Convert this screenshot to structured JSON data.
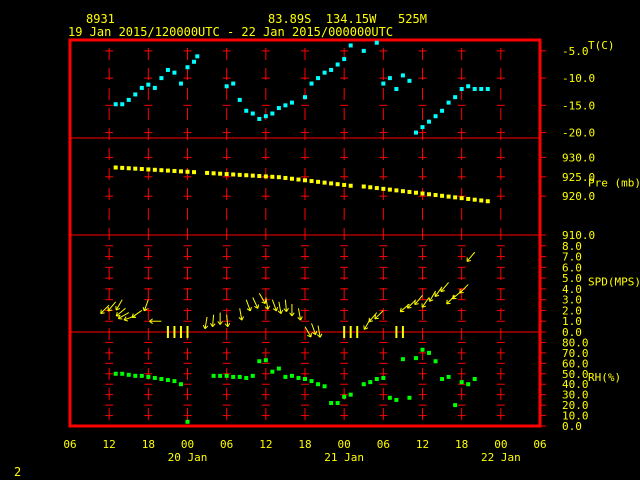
{
  "header": {
    "station_id": "8931",
    "location": "83.89S  134.15W   525M",
    "time_range": "19 Jan 2015/120000UTC - 22 Jan 2015/000000UTC"
  },
  "footer": {
    "page_number": "2"
  },
  "colors": {
    "frame": "#ff0000",
    "grid": "#ff0000",
    "temperature": "#00ffff",
    "pressure": "#ffff00",
    "wind": "#ffff00",
    "humidity": "#00ff00",
    "header_text": "#ffff00",
    "axis_text": "#ffff00"
  },
  "x_axis": {
    "tick_labels": [
      "06",
      "12",
      "18",
      "00",
      "06",
      "12",
      "18",
      "00",
      "06",
      "12",
      "18",
      "00",
      "06"
    ],
    "tick_hours": [
      6,
      12,
      18,
      24,
      30,
      36,
      42,
      48,
      54,
      60,
      66,
      72,
      78
    ],
    "day_labels": [
      {
        "label": "20 Jan",
        "hour": 24
      },
      {
        "label": "21 Jan",
        "hour": 48
      },
      {
        "label": "22 Jan",
        "hour": 72
      }
    ]
  },
  "chart_data": [
    {
      "type": "scatter",
      "panel": "temperature",
      "ylabel": "T(C)",
      "ylim": [
        -21,
        -3
      ],
      "ticks": [
        "-5.0",
        "-10.0",
        "-15.0",
        "-20.0"
      ],
      "tick_values": [
        -5,
        -10,
        -15,
        -20
      ],
      "x_unit": "hours since 19 Jan 2015 00 UTC",
      "points": [
        [
          13,
          -14.8
        ],
        [
          14,
          -14.8
        ],
        [
          15,
          -14
        ],
        [
          16,
          -13
        ],
        [
          17,
          -11.8
        ],
        [
          18,
          -11.2
        ],
        [
          19,
          -11.8
        ],
        [
          20,
          -10
        ],
        [
          21,
          -8.5
        ],
        [
          22,
          -9
        ],
        [
          23,
          -11
        ],
        [
          24,
          -8
        ],
        [
          25,
          -7
        ],
        [
          25.5,
          -6
        ],
        [
          30,
          -11.5
        ],
        [
          31,
          -11
        ],
        [
          32,
          -14
        ],
        [
          33,
          -16
        ],
        [
          34,
          -16.5
        ],
        [
          35,
          -17.5
        ],
        [
          36,
          -17
        ],
        [
          37,
          -16.5
        ],
        [
          38,
          -15.5
        ],
        [
          39,
          -15
        ],
        [
          40,
          -14.5
        ],
        [
          42,
          -13.5
        ],
        [
          43,
          -11
        ],
        [
          44,
          -10
        ],
        [
          45,
          -9
        ],
        [
          46,
          -8.5
        ],
        [
          47,
          -7.5
        ],
        [
          48,
          -6.5
        ],
        [
          49,
          -4
        ],
        [
          51,
          -5
        ],
        [
          53,
          -3.5
        ],
        [
          54,
          -11
        ],
        [
          55,
          -10
        ],
        [
          56,
          -12
        ],
        [
          57,
          -9.5
        ],
        [
          58,
          -10.5
        ],
        [
          59,
          -20
        ],
        [
          60,
          -19
        ],
        [
          61,
          -18
        ],
        [
          62,
          -17
        ],
        [
          63,
          -16
        ],
        [
          64,
          -14.5
        ],
        [
          65,
          -13.5
        ],
        [
          66,
          -12
        ],
        [
          67,
          -11.5
        ],
        [
          68,
          -12
        ],
        [
          69,
          -12
        ],
        [
          70,
          -12
        ]
      ]
    },
    {
      "type": "scatter",
      "panel": "pressure",
      "ylabel": "Pre (mb)",
      "ylim": [
        910,
        935
      ],
      "ticks": [
        "930.0",
        "925.0",
        "920.0",
        "910.0"
      ],
      "tick_values": [
        930,
        925,
        920,
        910
      ],
      "x_unit": "hours since 19 Jan 2015 00 UTC",
      "points": [
        [
          13,
          927.4
        ],
        [
          14,
          927.3
        ],
        [
          15,
          927.2
        ],
        [
          16,
          927.1
        ],
        [
          17,
          927
        ],
        [
          18,
          926.9
        ],
        [
          19,
          926.8
        ],
        [
          20,
          926.7
        ],
        [
          21,
          926.6
        ],
        [
          22,
          926.5
        ],
        [
          23,
          926.4
        ],
        [
          24,
          926.3
        ],
        [
          25,
          926.2
        ],
        [
          27,
          926
        ],
        [
          28,
          925.9
        ],
        [
          29,
          925.8
        ],
        [
          30,
          925.7
        ],
        [
          31,
          925.6
        ],
        [
          32,
          925.5
        ],
        [
          33,
          925.4
        ],
        [
          34,
          925.3
        ],
        [
          35,
          925.2
        ],
        [
          36,
          925.1
        ],
        [
          37,
          925
        ],
        [
          38,
          924.9
        ],
        [
          39,
          924.7
        ],
        [
          40,
          924.5
        ],
        [
          41,
          924.3
        ],
        [
          42,
          924.1
        ],
        [
          43,
          923.9
        ],
        [
          44,
          923.7
        ],
        [
          45,
          923.5
        ],
        [
          46,
          923.3
        ],
        [
          47,
          923.1
        ],
        [
          48,
          922.9
        ],
        [
          49,
          922.7
        ],
        [
          51,
          922.5
        ],
        [
          52,
          922.3
        ],
        [
          53,
          922.1
        ],
        [
          54,
          921.9
        ],
        [
          55,
          921.7
        ],
        [
          56,
          921.5
        ],
        [
          57,
          921.3
        ],
        [
          58,
          921.1
        ],
        [
          59,
          920.9
        ],
        [
          60,
          920.7
        ],
        [
          61,
          920.5
        ],
        [
          62,
          920.3
        ],
        [
          63,
          920.1
        ],
        [
          64,
          919.9
        ],
        [
          65,
          919.7
        ],
        [
          66,
          919.5
        ],
        [
          67,
          919.3
        ],
        [
          68,
          919.1
        ],
        [
          69,
          918.9
        ],
        [
          70,
          918.7
        ]
      ]
    },
    {
      "type": "scatter",
      "panel": "wind",
      "ylabel": "SPD(MPS)",
      "ylim": [
        0,
        9
      ],
      "ticks": [
        "8.0",
        "7.0",
        "6.0",
        "5.0",
        "4.0",
        "3.0",
        "2.0",
        "1.0",
        "0.0"
      ],
      "tick_values": [
        8,
        7,
        6,
        5,
        4,
        3,
        2,
        1,
        0
      ],
      "x_unit": "hours since 19 Jan 2015 00 UTC",
      "points": [
        [
          12,
          2.5,
          45
        ],
        [
          13,
          2.8,
          50
        ],
        [
          14,
          3,
          60
        ],
        [
          14.5,
          2.2,
          40
        ],
        [
          15,
          1.8,
          30
        ],
        [
          16,
          1.5,
          20
        ],
        [
          17,
          2,
          35
        ],
        [
          18,
          3,
          70
        ],
        [
          20,
          1,
          0
        ],
        [
          21,
          0,
          0
        ],
        [
          22,
          0,
          0
        ],
        [
          23,
          0,
          0
        ],
        [
          24,
          0,
          0
        ],
        [
          27,
          1.4,
          80
        ],
        [
          28,
          1.6,
          85
        ],
        [
          29,
          1.8,
          90
        ],
        [
          30,
          1.6,
          95
        ],
        [
          32,
          2.2,
          100
        ],
        [
          33,
          3,
          110
        ],
        [
          34,
          3.2,
          115
        ],
        [
          35,
          3.6,
          120
        ],
        [
          36,
          3.2,
          100
        ],
        [
          37,
          3,
          110
        ],
        [
          38,
          2.8,
          100
        ],
        [
          39,
          3,
          95
        ],
        [
          40,
          2.6,
          90
        ],
        [
          41,
          2.2,
          100
        ],
        [
          42,
          0.5,
          120
        ],
        [
          43,
          0.8,
          110
        ],
        [
          44,
          0.6,
          100
        ],
        [
          48,
          0,
          0
        ],
        [
          49,
          0,
          0
        ],
        [
          50,
          0,
          0
        ],
        [
          52,
          1.2,
          60
        ],
        [
          53,
          1.8,
          50
        ],
        [
          54,
          2,
          45
        ],
        [
          56,
          0,
          0
        ],
        [
          57,
          0,
          0
        ],
        [
          58,
          2.6,
          40
        ],
        [
          59,
          3,
          45
        ],
        [
          60,
          3.4,
          50
        ],
        [
          61,
          3.2,
          55
        ],
        [
          62,
          3.8,
          60
        ],
        [
          63,
          4.2,
          55
        ],
        [
          64,
          4.6,
          50
        ],
        [
          65,
          3.4,
          45
        ],
        [
          66,
          3.8,
          40
        ],
        [
          67,
          4.4,
          45
        ],
        [
          68,
          7.4,
          50
        ]
      ]
    },
    {
      "type": "scatter",
      "panel": "humidity",
      "ylabel": "RH(%)",
      "ylim": [
        0,
        90
      ],
      "ticks": [
        "80.0",
        "70.0",
        "60.0",
        "50.0",
        "40.0",
        "30.0",
        "20.0",
        "10.0",
        "0.0"
      ],
      "tick_values": [
        80,
        70,
        60,
        50,
        40,
        30,
        20,
        10,
        0
      ],
      "x_unit": "hours since 19 Jan 2015 00 UTC",
      "points": [
        [
          13,
          50
        ],
        [
          14,
          50
        ],
        [
          15,
          49
        ],
        [
          16,
          48
        ],
        [
          17,
          48
        ],
        [
          18,
          47
        ],
        [
          19,
          46
        ],
        [
          20,
          45
        ],
        [
          21,
          44
        ],
        [
          22,
          43
        ],
        [
          23,
          40
        ],
        [
          24,
          4
        ],
        [
          28,
          48
        ],
        [
          29,
          48
        ],
        [
          30,
          48
        ],
        [
          31,
          47
        ],
        [
          32,
          47
        ],
        [
          33,
          46
        ],
        [
          34,
          48
        ],
        [
          35,
          62
        ],
        [
          36,
          63
        ],
        [
          37,
          52
        ],
        [
          38,
          55
        ],
        [
          39,
          47
        ],
        [
          40,
          48
        ],
        [
          41,
          46
        ],
        [
          42,
          45
        ],
        [
          43,
          43
        ],
        [
          44,
          40
        ],
        [
          45,
          38
        ],
        [
          46,
          22
        ],
        [
          47,
          22
        ],
        [
          48,
          28
        ],
        [
          49,
          30
        ],
        [
          51,
          40
        ],
        [
          52,
          42
        ],
        [
          53,
          45
        ],
        [
          54,
          46
        ],
        [
          55,
          27
        ],
        [
          56,
          25
        ],
        [
          57,
          64
        ],
        [
          58,
          27
        ],
        [
          59,
          65
        ],
        [
          60,
          73
        ],
        [
          61,
          70
        ],
        [
          62,
          62
        ],
        [
          63,
          45
        ],
        [
          64,
          47
        ],
        [
          65,
          20
        ],
        [
          66,
          42
        ],
        [
          67,
          40
        ],
        [
          68,
          45
        ]
      ]
    }
  ]
}
